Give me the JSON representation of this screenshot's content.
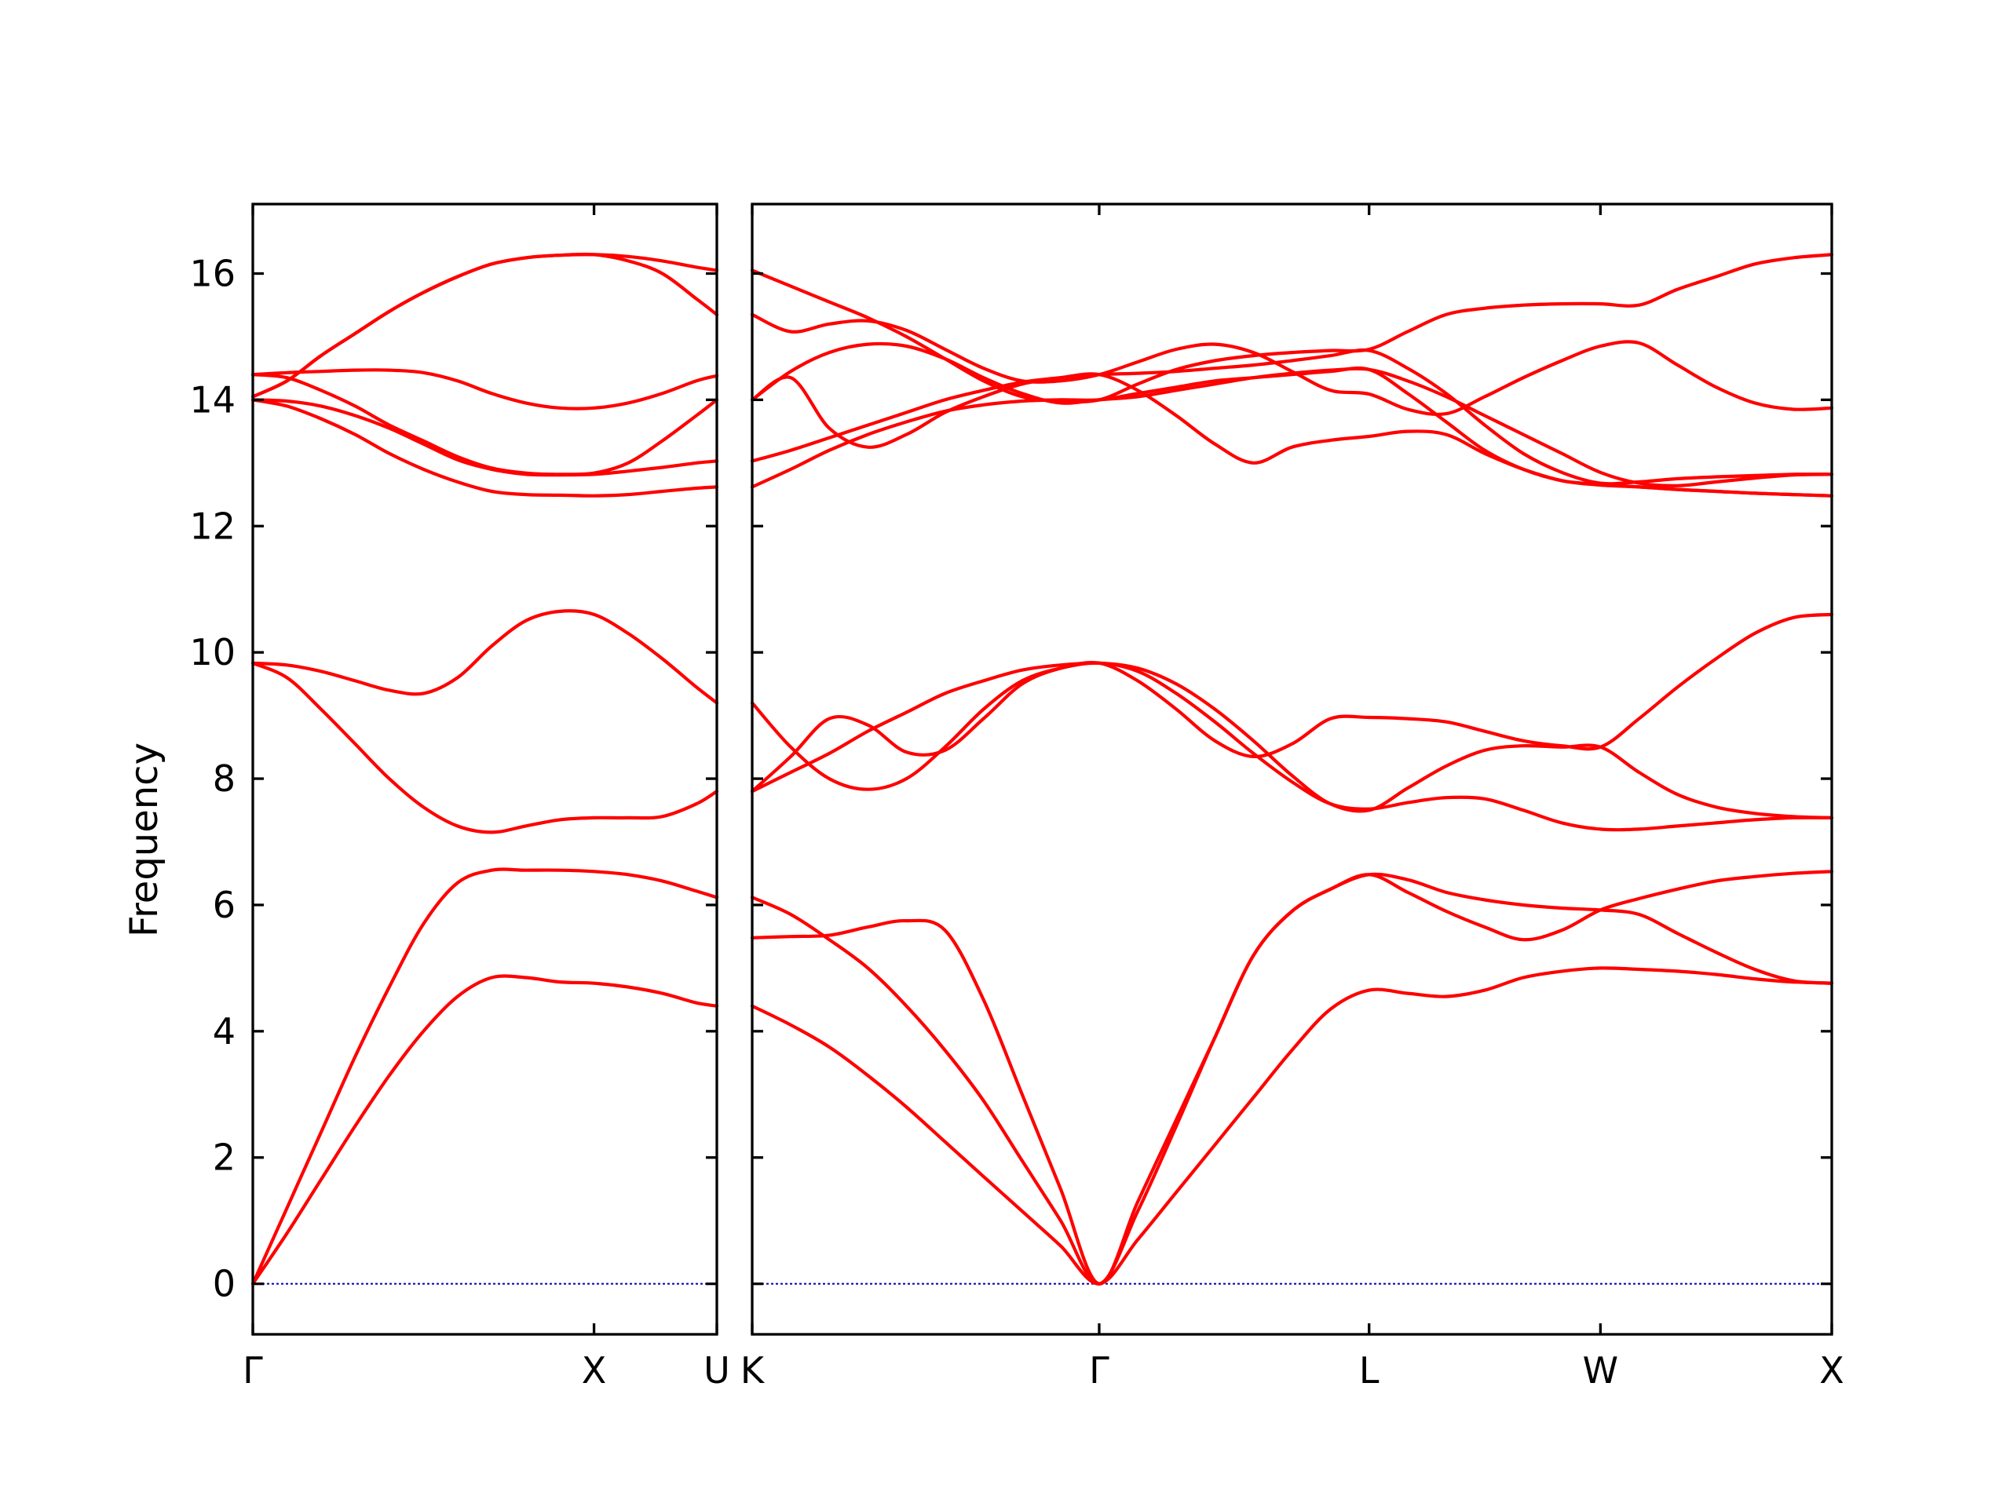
{
  "chart_data": {
    "type": "line",
    "ylabel": "Frequency",
    "xlabel": "",
    "ylim": [
      -0.8,
      17.1
    ],
    "yticks": [
      0,
      2,
      4,
      6,
      8,
      10,
      12,
      14,
      16
    ],
    "grid": false,
    "line_color": "#ff0000",
    "zero_line_color": "#0000aa",
    "panels": [
      {
        "name": "left-panel",
        "path_labels": [
          "Γ",
          "X",
          "U"
        ],
        "x": [
          0.0,
          0.1,
          0.2,
          0.3,
          0.4,
          0.5,
          0.6,
          0.7,
          0.8,
          0.9,
          1.0,
          1.1,
          1.2,
          1.3,
          1.36
        ],
        "series": [
          {
            "values": [
              0.0,
              0.8,
              1.65,
              2.5,
              3.3,
              4.0,
              4.55,
              4.85,
              4.85,
              4.78,
              4.76,
              4.7,
              4.6,
              4.45,
              4.4
            ]
          },
          {
            "values": [
              0.0,
              1.2,
              2.4,
              3.6,
              4.7,
              5.7,
              6.35,
              6.55,
              6.55,
              6.55,
              6.53,
              6.48,
              6.38,
              6.22,
              6.12
            ]
          },
          {
            "values": [
              9.83,
              9.6,
              9.1,
              8.55,
              8.0,
              7.55,
              7.25,
              7.15,
              7.25,
              7.35,
              7.38,
              7.38,
              7.4,
              7.6,
              7.8
            ]
          },
          {
            "values": [
              9.83,
              9.8,
              9.7,
              9.55,
              9.4,
              9.35,
              9.6,
              10.1,
              10.5,
              10.65,
              10.6,
              10.3,
              9.9,
              9.45,
              9.2
            ]
          },
          {
            "values": [
              14.0,
              13.9,
              13.7,
              13.45,
              13.15,
              12.9,
              12.7,
              12.55,
              12.5,
              12.49,
              12.48,
              12.5,
              12.55,
              12.6,
              12.62
            ]
          },
          {
            "values": [
              14.0,
              13.98,
              13.9,
              13.75,
              13.55,
              13.3,
              13.05,
              12.9,
              12.82,
              12.81,
              12.82,
              12.87,
              12.93,
              13.0,
              13.03
            ]
          },
          {
            "values": [
              14.4,
              14.35,
              14.15,
              13.9,
              13.6,
              13.35,
              13.1,
              12.92,
              12.84,
              12.82,
              12.84,
              13.0,
              13.35,
              13.75,
              14.0
            ]
          },
          {
            "values": [
              14.4,
              14.43,
              14.45,
              14.47,
              14.47,
              14.43,
              14.3,
              14.1,
              13.95,
              13.87,
              13.87,
              13.95,
              14.1,
              14.3,
              14.38
            ]
          },
          {
            "values": [
              14.05,
              14.3,
              14.7,
              15.05,
              15.4,
              15.7,
              15.95,
              16.15,
              16.25,
              16.29,
              16.3,
              16.27,
              16.2,
              16.1,
              16.05
            ]
          },
          {
            "values": [
              14.05,
              14.3,
              14.7,
              15.05,
              15.4,
              15.7,
              15.95,
              16.15,
              16.25,
              16.29,
              16.3,
              16.2,
              16.0,
              15.6,
              15.35
            ]
          }
        ]
      },
      {
        "name": "right-panel",
        "path_labels": [
          "K",
          "Γ",
          "L",
          "W",
          "X"
        ],
        "x": [
          0.0,
          0.25,
          0.5,
          0.75,
          1.0,
          1.25,
          1.5,
          1.75,
          2.0,
          2.25,
          2.5,
          2.75,
          3.0,
          3.25,
          3.5,
          3.75,
          4.0,
          4.25,
          4.5,
          4.75,
          5.0,
          5.25,
          5.5,
          5.75,
          6.0,
          6.25,
          6.5,
          6.75,
          7.0
        ],
        "series": [
          {
            "values": [
              4.4,
              4.1,
              3.75,
              3.3,
              2.8,
              2.25,
              1.7,
              1.15,
              0.6,
              0.0,
              0.7,
              1.45,
              2.2,
              2.95,
              3.7,
              4.35,
              4.65,
              4.6,
              4.55,
              4.65,
              4.85,
              4.95,
              5.0,
              4.98,
              4.95,
              4.9,
              4.83,
              4.78,
              4.76
            ]
          },
          {
            "values": [
              6.12,
              5.85,
              5.45,
              5.0,
              4.4,
              3.7,
              2.9,
              1.95,
              1.0,
              0.0,
              1.15,
              2.5,
              3.9,
              5.2,
              5.9,
              6.25,
              6.48,
              6.4,
              6.2,
              6.08,
              6.0,
              5.95,
              5.92,
              5.85,
              5.55,
              5.25,
              4.98,
              4.8,
              4.76
            ]
          },
          {
            "values": [
              5.48,
              5.5,
              5.52,
              5.65,
              5.75,
              5.6,
              4.5,
              3.0,
              1.5,
              0.0,
              1.3,
              2.6,
              3.9,
              5.2,
              5.9,
              6.25,
              6.48,
              6.2,
              5.9,
              5.65,
              5.45,
              5.6,
              5.92,
              6.1,
              6.25,
              6.38,
              6.45,
              6.5,
              6.53
            ]
          },
          {
            "values": [
              7.8,
              8.35,
              8.95,
              8.85,
              8.42,
              8.45,
              8.95,
              9.5,
              9.75,
              9.83,
              9.55,
              9.1,
              8.6,
              8.35,
              8.55,
              8.95,
              8.97,
              8.95,
              8.9,
              8.75,
              8.6,
              8.52,
              8.5,
              8.95,
              9.45,
              9.9,
              10.3,
              10.55,
              10.6
            ]
          },
          {
            "values": [
              9.2,
              8.5,
              8.0,
              7.83,
              8.0,
              8.5,
              9.1,
              9.55,
              9.75,
              9.83,
              9.7,
              9.35,
              8.9,
              8.4,
              7.95,
              7.6,
              7.52,
              7.62,
              7.7,
              7.68,
              7.5,
              7.3,
              7.2,
              7.2,
              7.25,
              7.3,
              7.35,
              7.38,
              7.38
            ]
          },
          {
            "values": [
              7.8,
              8.1,
              8.4,
              8.75,
              9.05,
              9.35,
              9.55,
              9.72,
              9.8,
              9.83,
              9.75,
              9.5,
              9.1,
              8.6,
              8.05,
              7.6,
              7.5,
              7.85,
              8.2,
              8.45,
              8.52,
              8.5,
              8.5,
              8.1,
              7.75,
              7.55,
              7.45,
              7.4,
              7.38
            ]
          },
          {
            "values": [
              12.62,
              12.9,
              13.2,
              13.45,
              13.65,
              13.82,
              13.92,
              13.98,
              14.0,
              14.0,
              14.1,
              14.2,
              14.3,
              14.35,
              14.4,
              14.45,
              14.48,
              14.1,
              13.65,
              13.2,
              12.9,
              12.72,
              12.66,
              12.62,
              12.58,
              12.55,
              12.52,
              12.5,
              12.48
            ]
          },
          {
            "values": [
              13.03,
              13.2,
              13.4,
              13.6,
              13.8,
              14.0,
              14.15,
              14.28,
              14.35,
              14.4,
              14.42,
              14.45,
              14.5,
              14.55,
              14.62,
              14.7,
              14.78,
              14.5,
              14.1,
              13.6,
              13.15,
              12.85,
              12.68,
              12.7,
              12.75,
              12.78,
              12.8,
              12.82,
              12.82
            ]
          },
          {
            "values": [
              14.0,
              14.45,
              14.75,
              14.88,
              14.85,
              14.65,
              14.35,
              14.1,
              13.95,
              14.0,
              14.05,
              14.15,
              14.25,
              14.35,
              14.42,
              14.47,
              14.48,
              14.3,
              14.05,
              13.75,
              13.45,
              13.15,
              12.85,
              12.68,
              12.64,
              12.7,
              12.76,
              12.81,
              12.82
            ]
          },
          {
            "values": [
              14.0,
              14.35,
              13.55,
              13.25,
              13.45,
              13.8,
              14.05,
              14.25,
              14.35,
              14.4,
              14.15,
              13.75,
              13.3,
              13.0,
              13.25,
              13.36,
              13.42,
              13.5,
              13.45,
              13.15,
              12.9,
              12.72,
              12.65,
              12.62,
              12.58,
              12.55,
              12.52,
              12.5,
              12.48
            ]
          },
          {
            "values": [
              15.35,
              15.08,
              15.2,
              15.25,
              15.1,
              14.8,
              14.5,
              14.3,
              14.3,
              14.4,
              14.6,
              14.8,
              14.88,
              14.75,
              14.45,
              14.15,
              14.09,
              13.85,
              13.78,
              14.05,
              14.35,
              14.62,
              14.85,
              14.9,
              14.55,
              14.2,
              13.95,
              13.85,
              13.87
            ]
          },
          {
            "values": [
              16.05,
              15.8,
              15.55,
              15.3,
              15.0,
              14.65,
              14.3,
              14.05,
              13.98,
              14.0,
              14.25,
              14.48,
              14.62,
              14.7,
              14.75,
              14.78,
              14.8,
              15.08,
              15.35,
              15.45,
              15.5,
              15.52,
              15.52,
              15.5,
              15.75,
              15.95,
              16.15,
              16.25,
              16.3
            ]
          }
        ]
      }
    ]
  }
}
